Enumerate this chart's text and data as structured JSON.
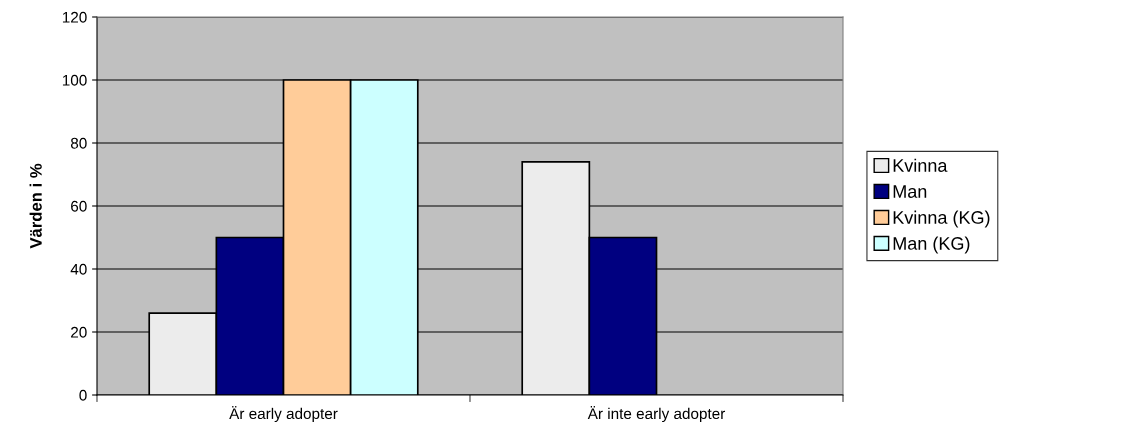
{
  "chart_data": {
    "type": "bar",
    "ylabel": "Värden i %",
    "categories": [
      "Är early adopter",
      "Är inte early adopter"
    ],
    "series": [
      {
        "name": "Kvinna",
        "color": "#ececec",
        "values": [
          26,
          74
        ]
      },
      {
        "name": "Man",
        "color": "#000080",
        "values": [
          50,
          50
        ]
      },
      {
        "name": "Kvinna (KG)",
        "color": "#ffcc99",
        "values": [
          100,
          null
        ]
      },
      {
        "name": "Man (KG)",
        "color": "#ccffff",
        "values": [
          100,
          null
        ]
      }
    ],
    "ylim": [
      0,
      120
    ],
    "yticks": [
      0,
      20,
      40,
      60,
      80,
      100,
      120
    ],
    "grid": "y",
    "legend": "right"
  }
}
